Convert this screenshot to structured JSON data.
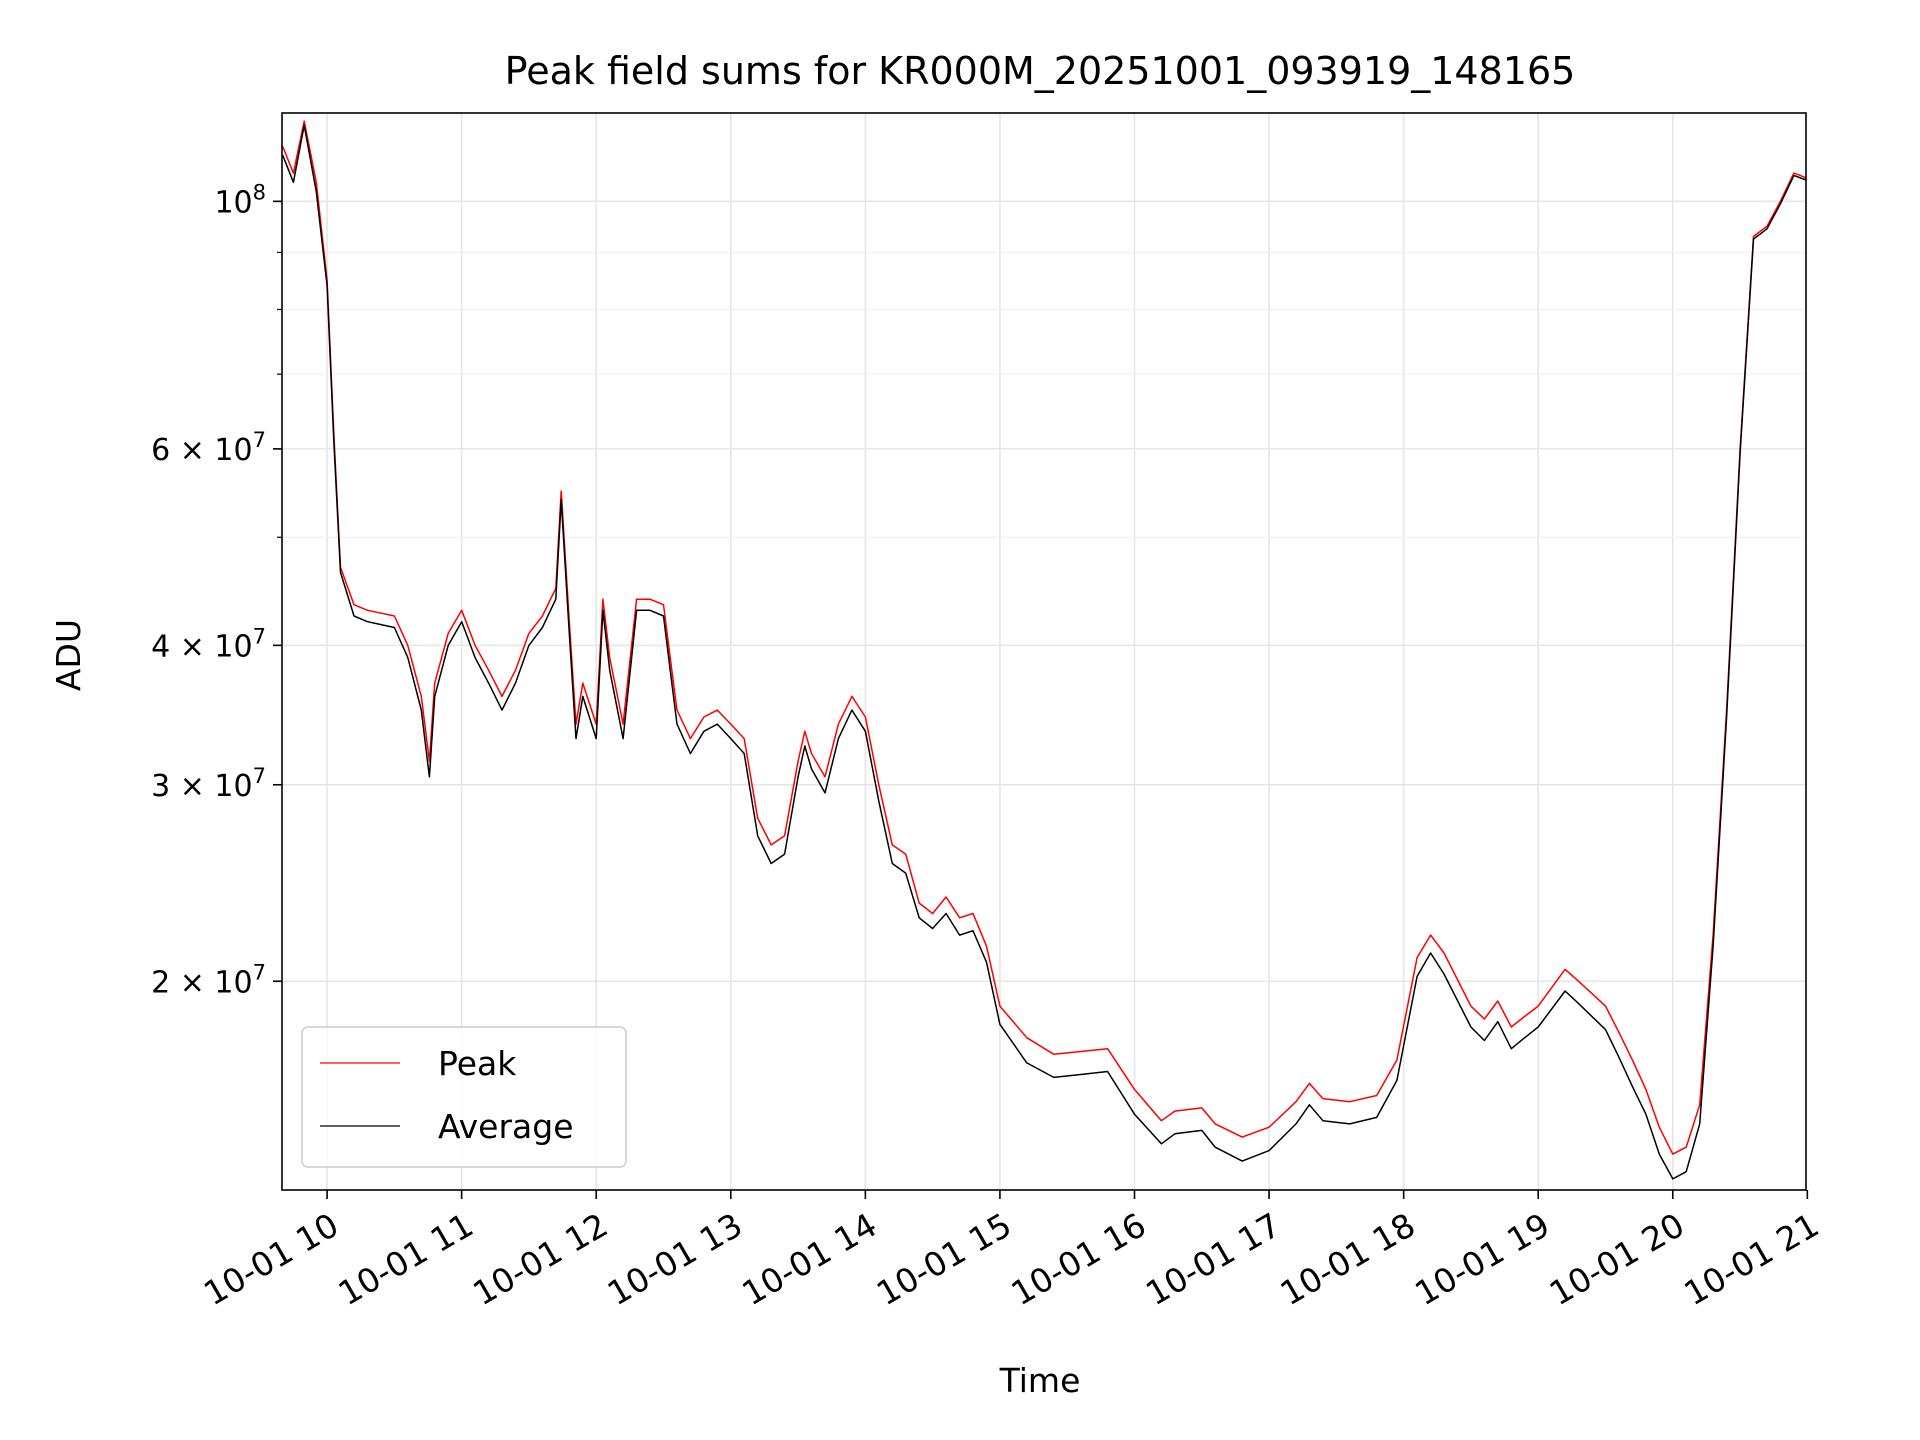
{
  "chart_data": {
    "type": "line",
    "title": "Peak field sums for KR000M_20251001_093919_148165",
    "xlabel": "Time",
    "ylabel": "ADU",
    "yscale": "log",
    "grid": true,
    "legend_position": "lower-left",
    "xlim": [
      9.665,
      20.99
    ],
    "ylim": [
      13000000,
      120000000
    ],
    "x_ticks": [
      {
        "value": 10,
        "label": "10-01 10"
      },
      {
        "value": 11,
        "label": "10-01 11"
      },
      {
        "value": 12,
        "label": "10-01 12"
      },
      {
        "value": 13,
        "label": "10-01 13"
      },
      {
        "value": 14,
        "label": "10-01 14"
      },
      {
        "value": 15,
        "label": "10-01 15"
      },
      {
        "value": 16,
        "label": "10-01 16"
      },
      {
        "value": 17,
        "label": "10-01 17"
      },
      {
        "value": 18,
        "label": "10-01 18"
      },
      {
        "value": 19,
        "label": "10-01 19"
      },
      {
        "value": 20,
        "label": "10-01 20"
      },
      {
        "value": 21,
        "label": "10-01 21"
      }
    ],
    "y_ticks": [
      {
        "value": 20000000,
        "base": "2 × 10",
        "exp": "7"
      },
      {
        "value": 30000000,
        "base": "3 × 10",
        "exp": "7"
      },
      {
        "value": 40000000,
        "base": "4 × 10",
        "exp": "7"
      },
      {
        "value": 60000000,
        "base": "6 × 10",
        "exp": "7"
      },
      {
        "value": 100000000,
        "base": "10",
        "exp": "8"
      }
    ],
    "y_minor_ticks": [
      50000000,
      70000000,
      80000000,
      90000000
    ],
    "series": [
      {
        "name": "Peak",
        "color": "#ff0000",
        "points": [
          [
            9.67,
            112000000
          ],
          [
            9.75,
            106000000
          ],
          [
            9.83,
            118000000
          ],
          [
            9.92,
            104000000
          ],
          [
            10.0,
            85000000
          ],
          [
            10.05,
            62000000
          ],
          [
            10.1,
            47000000
          ],
          [
            10.2,
            43500000
          ],
          [
            10.3,
            43000000
          ],
          [
            10.5,
            42500000
          ],
          [
            10.6,
            40000000
          ],
          [
            10.7,
            36000000
          ],
          [
            10.76,
            31500000
          ],
          [
            10.8,
            37000000
          ],
          [
            10.9,
            41000000
          ],
          [
            11.0,
            43000000
          ],
          [
            11.1,
            40000000
          ],
          [
            11.2,
            38000000
          ],
          [
            11.3,
            36000000
          ],
          [
            11.4,
            38000000
          ],
          [
            11.5,
            41000000
          ],
          [
            11.6,
            42500000
          ],
          [
            11.7,
            45000000
          ],
          [
            11.74,
            55000000
          ],
          [
            11.8,
            42000000
          ],
          [
            11.85,
            34000000
          ],
          [
            11.9,
            37000000
          ],
          [
            12.0,
            34000000
          ],
          [
            12.05,
            44000000
          ],
          [
            12.1,
            39000000
          ],
          [
            12.2,
            34000000
          ],
          [
            12.3,
            44000000
          ],
          [
            12.4,
            44000000
          ],
          [
            12.5,
            43500000
          ],
          [
            12.55,
            39000000
          ],
          [
            12.6,
            35000000
          ],
          [
            12.7,
            33000000
          ],
          [
            12.8,
            34500000
          ],
          [
            12.9,
            35000000
          ],
          [
            13.0,
            34000000
          ],
          [
            13.1,
            33000000
          ],
          [
            13.2,
            28000000
          ],
          [
            13.3,
            26500000
          ],
          [
            13.4,
            27000000
          ],
          [
            13.5,
            31500000
          ],
          [
            13.55,
            33500000
          ],
          [
            13.6,
            32000000
          ],
          [
            13.7,
            30500000
          ],
          [
            13.8,
            34000000
          ],
          [
            13.9,
            36000000
          ],
          [
            14.0,
            34500000
          ],
          [
            14.1,
            30000000
          ],
          [
            14.2,
            26500000
          ],
          [
            14.3,
            26000000
          ],
          [
            14.4,
            23500000
          ],
          [
            14.5,
            23000000
          ],
          [
            14.6,
            23800000
          ],
          [
            14.7,
            22800000
          ],
          [
            14.8,
            23000000
          ],
          [
            14.9,
            21500000
          ],
          [
            15.0,
            19000000
          ],
          [
            15.2,
            17800000
          ],
          [
            15.4,
            17200000
          ],
          [
            15.6,
            17300000
          ],
          [
            15.8,
            17400000
          ],
          [
            16.0,
            16000000
          ],
          [
            16.2,
            15000000
          ],
          [
            16.3,
            15300000
          ],
          [
            16.5,
            15400000
          ],
          [
            16.6,
            14900000
          ],
          [
            16.8,
            14500000
          ],
          [
            17.0,
            14800000
          ],
          [
            17.2,
            15600000
          ],
          [
            17.3,
            16200000
          ],
          [
            17.4,
            15700000
          ],
          [
            17.6,
            15600000
          ],
          [
            17.8,
            15800000
          ],
          [
            17.95,
            17000000
          ],
          [
            18.1,
            21000000
          ],
          [
            18.2,
            22000000
          ],
          [
            18.3,
            21200000
          ],
          [
            18.5,
            19000000
          ],
          [
            18.6,
            18500000
          ],
          [
            18.7,
            19200000
          ],
          [
            18.8,
            18200000
          ],
          [
            18.9,
            18600000
          ],
          [
            19.0,
            19000000
          ],
          [
            19.2,
            20500000
          ],
          [
            19.3,
            20000000
          ],
          [
            19.5,
            19000000
          ],
          [
            19.6,
            18000000
          ],
          [
            19.7,
            17000000
          ],
          [
            19.8,
            16000000
          ],
          [
            19.9,
            14800000
          ],
          [
            20.0,
            14000000
          ],
          [
            20.1,
            14200000
          ],
          [
            20.2,
            15500000
          ],
          [
            20.3,
            22000000
          ],
          [
            20.4,
            35000000
          ],
          [
            20.5,
            60000000
          ],
          [
            20.6,
            93000000
          ],
          [
            20.7,
            95000000
          ],
          [
            20.8,
            100000000
          ],
          [
            20.9,
            106000000
          ],
          [
            20.99,
            105000000
          ]
        ]
      },
      {
        "name": "Average",
        "color": "#000000",
        "points": [
          [
            9.67,
            110000000
          ],
          [
            9.75,
            104000000
          ],
          [
            9.83,
            117000000
          ],
          [
            9.92,
            102000000
          ],
          [
            10.0,
            84000000
          ],
          [
            10.05,
            61000000
          ],
          [
            10.1,
            46500000
          ],
          [
            10.2,
            42500000
          ],
          [
            10.3,
            42000000
          ],
          [
            10.5,
            41500000
          ],
          [
            10.6,
            39000000
          ],
          [
            10.7,
            35000000
          ],
          [
            10.76,
            30500000
          ],
          [
            10.8,
            36000000
          ],
          [
            10.9,
            40000000
          ],
          [
            11.0,
            42000000
          ],
          [
            11.1,
            39000000
          ],
          [
            11.2,
            37000000
          ],
          [
            11.3,
            35000000
          ],
          [
            11.4,
            37000000
          ],
          [
            11.5,
            40000000
          ],
          [
            11.6,
            41500000
          ],
          [
            11.7,
            44000000
          ],
          [
            11.74,
            54000000
          ],
          [
            11.8,
            41000000
          ],
          [
            11.85,
            33000000
          ],
          [
            11.9,
            36000000
          ],
          [
            12.0,
            33000000
          ],
          [
            12.05,
            43000000
          ],
          [
            12.1,
            38000000
          ],
          [
            12.2,
            33000000
          ],
          [
            12.3,
            43000000
          ],
          [
            12.4,
            43000000
          ],
          [
            12.5,
            42500000
          ],
          [
            12.55,
            38000000
          ],
          [
            12.6,
            34000000
          ],
          [
            12.7,
            32000000
          ],
          [
            12.8,
            33500000
          ],
          [
            12.9,
            34000000
          ],
          [
            13.0,
            33000000
          ],
          [
            13.1,
            32000000
          ],
          [
            13.2,
            27000000
          ],
          [
            13.3,
            25500000
          ],
          [
            13.4,
            26000000
          ],
          [
            13.5,
            30500000
          ],
          [
            13.55,
            32500000
          ],
          [
            13.6,
            31000000
          ],
          [
            13.7,
            29500000
          ],
          [
            13.8,
            33000000
          ],
          [
            13.9,
            35000000
          ],
          [
            14.0,
            33500000
          ],
          [
            14.1,
            29000000
          ],
          [
            14.2,
            25500000
          ],
          [
            14.3,
            25000000
          ],
          [
            14.4,
            22800000
          ],
          [
            14.5,
            22300000
          ],
          [
            14.6,
            23000000
          ],
          [
            14.7,
            22000000
          ],
          [
            14.8,
            22200000
          ],
          [
            14.9,
            20800000
          ],
          [
            15.0,
            18300000
          ],
          [
            15.2,
            16900000
          ],
          [
            15.4,
            16400000
          ],
          [
            15.6,
            16500000
          ],
          [
            15.8,
            16600000
          ],
          [
            16.0,
            15200000
          ],
          [
            16.2,
            14300000
          ],
          [
            16.3,
            14600000
          ],
          [
            16.5,
            14700000
          ],
          [
            16.6,
            14200000
          ],
          [
            16.8,
            13800000
          ],
          [
            17.0,
            14100000
          ],
          [
            17.2,
            14900000
          ],
          [
            17.3,
            15500000
          ],
          [
            17.4,
            15000000
          ],
          [
            17.6,
            14900000
          ],
          [
            17.8,
            15100000
          ],
          [
            17.95,
            16300000
          ],
          [
            18.1,
            20200000
          ],
          [
            18.2,
            21200000
          ],
          [
            18.3,
            20300000
          ],
          [
            18.5,
            18200000
          ],
          [
            18.6,
            17700000
          ],
          [
            18.7,
            18400000
          ],
          [
            18.8,
            17400000
          ],
          [
            18.9,
            17800000
          ],
          [
            19.0,
            18200000
          ],
          [
            19.2,
            19600000
          ],
          [
            19.3,
            19100000
          ],
          [
            19.5,
            18100000
          ],
          [
            19.6,
            17100000
          ],
          [
            19.7,
            16100000
          ],
          [
            19.8,
            15200000
          ],
          [
            19.9,
            14000000
          ],
          [
            20.0,
            13300000
          ],
          [
            20.1,
            13500000
          ],
          [
            20.2,
            14900000
          ],
          [
            20.3,
            21500000
          ],
          [
            20.4,
            34500000
          ],
          [
            20.5,
            59500000
          ],
          [
            20.6,
            92500000
          ],
          [
            20.7,
            94500000
          ],
          [
            20.8,
            99500000
          ],
          [
            20.9,
            105500000
          ],
          [
            20.99,
            104500000
          ]
        ]
      }
    ]
  }
}
